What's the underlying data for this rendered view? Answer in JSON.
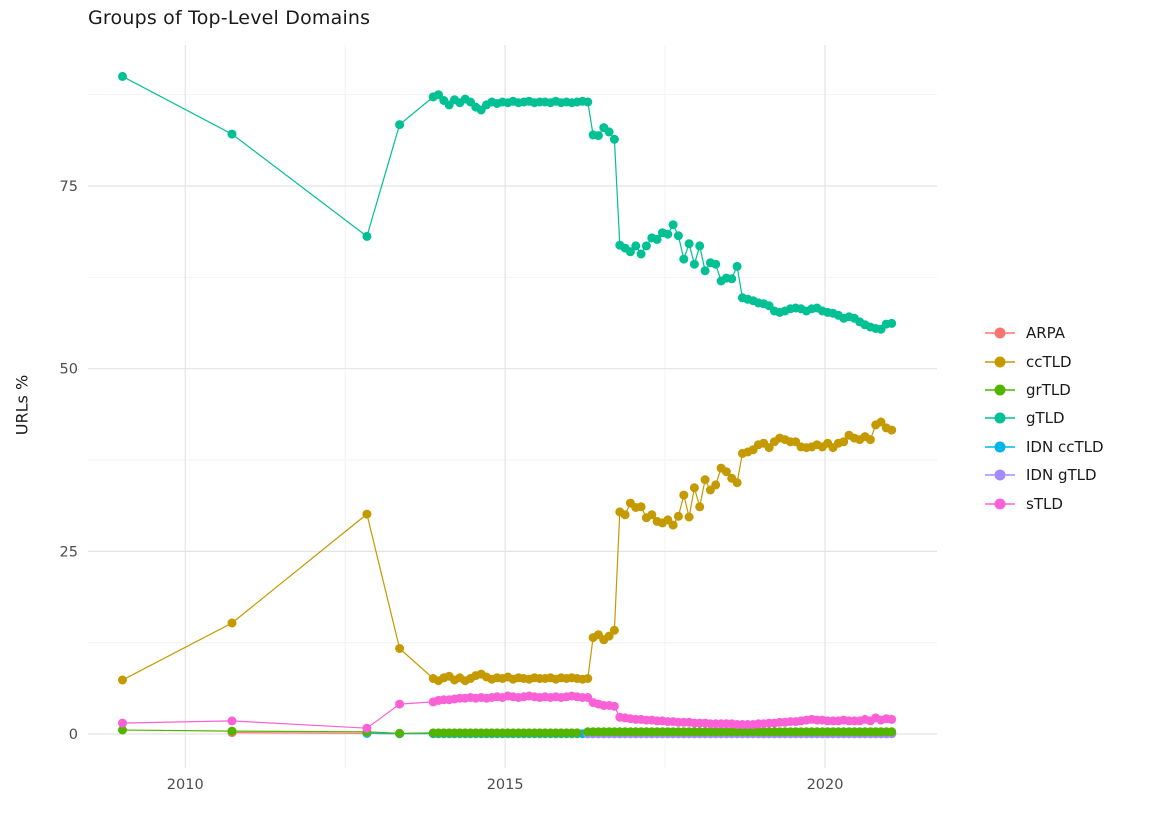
{
  "chart_data": {
    "type": "line",
    "title": "Groups of Top-Level Domains",
    "xlabel": "",
    "ylabel": "URLs %",
    "x_domain": [
      2008.48,
      2021.75
    ],
    "y_domain": [
      -4.65,
      94.3
    ],
    "x_ticks": [
      {
        "v": 2010,
        "label": "2010"
      },
      {
        "v": 2015,
        "label": "2015"
      },
      {
        "v": 2020,
        "label": "2020"
      }
    ],
    "x_minor": [
      2012.5,
      2017.5
    ],
    "y_ticks": [
      {
        "v": 0,
        "label": "0"
      },
      {
        "v": 25,
        "label": "25"
      },
      {
        "v": 50,
        "label": "50"
      },
      {
        "v": 75,
        "label": "75"
      }
    ],
    "y_minor": [
      12.5,
      37.5,
      62.5,
      87.5
    ],
    "grid": true,
    "legend_position": "right",
    "draw_order": [
      "ARPA",
      "IDN ccTLD",
      "IDN gTLD",
      "grTLD",
      "ccTLD",
      "gTLD",
      "sTLD"
    ],
    "series": [
      {
        "name": "ARPA",
        "color": "#F8766D",
        "sparse": [
          [
            2010.73,
            0.2
          ],
          [
            2012.84,
            0.1
          ],
          [
            2013.35,
            0.05
          ]
        ]
      },
      {
        "name": "ccTLD",
        "color": "#C49A00",
        "sparse": [
          [
            2009.02,
            7.4
          ],
          [
            2010.73,
            15.2
          ],
          [
            2012.84,
            30.1
          ],
          [
            2013.35,
            11.7
          ]
        ],
        "dense": {
          "x_start": 2013.875,
          "x_step": 0.0833333,
          "values": [
            7.6,
            7.3,
            7.7,
            7.9,
            7.4,
            7.7,
            7.3,
            7.6,
            8.0,
            8.2,
            7.8,
            7.5,
            7.7,
            7.6,
            7.8,
            7.5,
            7.7,
            7.6,
            7.5,
            7.7,
            7.6,
            7.6,
            7.7,
            7.5,
            7.7,
            7.6,
            7.7,
            7.6,
            7.5,
            7.6,
            13.2,
            13.6,
            12.9,
            13.4,
            14.2,
            30.4,
            30.0,
            31.6,
            31.0,
            31.1,
            29.6,
            30.0,
            29.1,
            28.9,
            29.3,
            28.6,
            29.8,
            32.7,
            29.7,
            33.7,
            31.1,
            34.8,
            33.4,
            34.1,
            36.4,
            35.9,
            35.0,
            34.4,
            38.4,
            38.6,
            38.9,
            39.6,
            39.8,
            39.2,
            40.0,
            40.5,
            40.3,
            40.0,
            40.0,
            39.3,
            39.2,
            39.3,
            39.6,
            39.3,
            39.8,
            39.2,
            39.8,
            40.0,
            40.9,
            40.5,
            40.3,
            40.7,
            40.3,
            42.3,
            42.7,
            41.9,
            41.6
          ]
        }
      },
      {
        "name": "grTLD",
        "color": "#53B400",
        "sparse": [
          [
            2009.02,
            0.55
          ],
          [
            2010.73,
            0.4
          ],
          [
            2012.84,
            0.3
          ],
          [
            2013.35,
            0.1
          ]
        ],
        "runs": [
          {
            "x_start": 2013.875,
            "x_end": 2016.2083,
            "x_step": 0.0833333,
            "y": 0.15
          },
          {
            "x_start": 2016.2917,
            "x_end": 2021.0417,
            "x_step": 0.0833333,
            "y": 0.3
          }
        ]
      },
      {
        "name": "gTLD",
        "color": "#00C094",
        "sparse": [
          [
            2009.02,
            90.0
          ],
          [
            2010.73,
            82.1
          ],
          [
            2012.84,
            68.1
          ],
          [
            2013.35,
            83.4
          ]
        ],
        "dense": {
          "x_start": 2013.875,
          "x_step": 0.0833333,
          "values": [
            87.2,
            87.5,
            86.7,
            86.1,
            86.8,
            86.4,
            86.9,
            86.5,
            85.8,
            85.4,
            86.1,
            86.5,
            86.3,
            86.5,
            86.4,
            86.6,
            86.4,
            86.5,
            86.6,
            86.4,
            86.5,
            86.5,
            86.4,
            86.6,
            86.4,
            86.5,
            86.4,
            86.5,
            86.6,
            86.5,
            82.0,
            81.9,
            83.0,
            82.4,
            81.4,
            66.9,
            66.5,
            66.0,
            66.8,
            65.7,
            66.8,
            67.9,
            67.7,
            68.6,
            68.4,
            69.7,
            68.2,
            65.0,
            67.1,
            64.3,
            66.8,
            63.4,
            64.5,
            64.3,
            62.0,
            62.4,
            62.3,
            64.0,
            59.7,
            59.5,
            59.3,
            59.0,
            58.9,
            58.6,
            57.9,
            57.7,
            57.9,
            58.2,
            58.3,
            58.2,
            57.9,
            58.2,
            58.3,
            57.9,
            57.7,
            57.6,
            57.3,
            56.9,
            57.1,
            56.9,
            56.4,
            56.0,
            55.7,
            55.5,
            55.4,
            56.1,
            56.2
          ]
        }
      },
      {
        "name": "IDN ccTLD",
        "color": "#00B6EB",
        "sparse": [
          [
            2012.84,
            0.1
          ],
          [
            2013.35,
            0.05
          ]
        ],
        "runs": [
          {
            "x_start": 2013.875,
            "x_end": 2021.0417,
            "x_step": 0.0833333,
            "y": 0.05
          }
        ]
      },
      {
        "name": "IDN gTLD",
        "color": "#A58AFF",
        "sparse": [],
        "runs": [
          {
            "x_start": 2016.2917,
            "x_end": 2021.0417,
            "x_step": 0.0833333,
            "y": 0.05
          }
        ]
      },
      {
        "name": "sTLD",
        "color": "#FB61D7",
        "sparse": [
          [
            2009.02,
            1.5
          ],
          [
            2010.73,
            1.8
          ],
          [
            2012.84,
            0.8
          ],
          [
            2013.35,
            4.1
          ]
        ],
        "dense": {
          "x_start": 2013.875,
          "x_step": 0.0833333,
          "values": [
            4.4,
            4.6,
            4.7,
            4.7,
            4.8,
            4.9,
            4.9,
            5.0,
            4.9,
            5.0,
            4.9,
            5.0,
            5.1,
            5.0,
            5.2,
            5.1,
            5.0,
            5.1,
            5.2,
            5.1,
            5.0,
            5.1,
            5.0,
            5.1,
            5.0,
            5.1,
            5.2,
            5.1,
            5.0,
            5.0,
            4.3,
            4.1,
            3.9,
            3.9,
            3.8,
            2.3,
            2.2,
            2.1,
            2.0,
            2.0,
            1.9,
            1.9,
            1.8,
            1.8,
            1.7,
            1.7,
            1.6,
            1.6,
            1.6,
            1.5,
            1.5,
            1.5,
            1.4,
            1.4,
            1.4,
            1.4,
            1.4,
            1.3,
            1.3,
            1.3,
            1.3,
            1.4,
            1.4,
            1.5,
            1.5,
            1.6,
            1.6,
            1.7,
            1.7,
            1.8,
            1.9,
            2.0,
            1.9,
            1.9,
            1.8,
            1.8,
            1.8,
            1.9,
            1.8,
            1.8,
            1.8,
            2.0,
            1.8,
            2.2,
            1.9,
            2.1,
            2.0
          ]
        }
      }
    ]
  },
  "legend": {
    "items": [
      "ARPA",
      "ccTLD",
      "grTLD",
      "gTLD",
      "IDN ccTLD",
      "IDN gTLD",
      "sTLD"
    ]
  },
  "colors": {
    "background": "#FFFFFF",
    "grid_major": "#E4E4E4",
    "grid_minor": "#F2F2F2",
    "tick_label": "#4D4D4D",
    "text": "#1A1A1A"
  }
}
